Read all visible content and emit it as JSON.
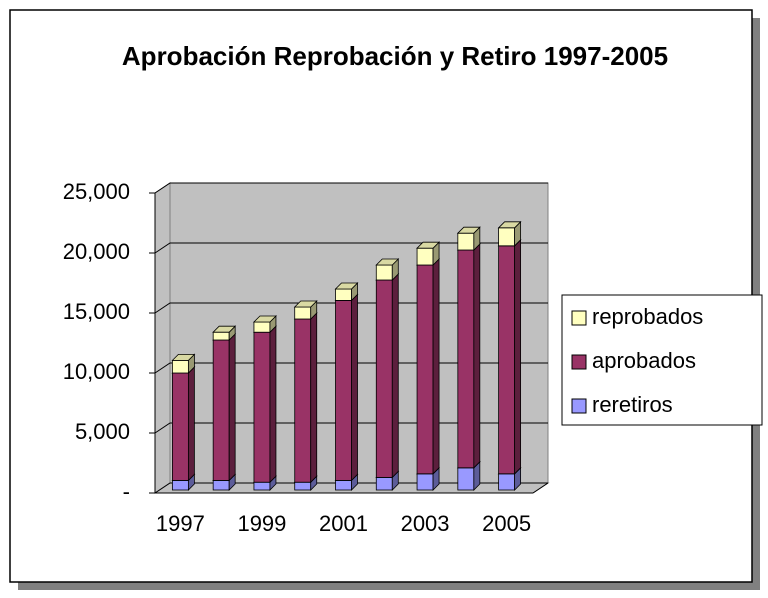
{
  "chart_data": {
    "type": "bar3d_stacked",
    "title": "Aprobación Reprobación y Retiro 1997-2005",
    "categories": [
      "1997",
      null,
      "1999",
      null,
      "2001",
      null,
      "2003",
      null,
      "2005"
    ],
    "series": [
      {
        "name": "reretiros",
        "color": "#9999ff",
        "values": [
          800,
          800,
          650,
          650,
          800,
          1050,
          1350,
          1850,
          1350
        ]
      },
      {
        "name": "aprobados",
        "color": "#993366",
        "values": [
          8950,
          11700,
          12500,
          13600,
          15000,
          16450,
          17400,
          18150,
          19000
        ]
      },
      {
        "name": "reprobados",
        "color": "#ffffc0",
        "values": [
          1050,
          650,
          850,
          1000,
          950,
          1250,
          1400,
          1400,
          1500
        ]
      }
    ],
    "ylim": [
      0,
      25000
    ],
    "yticks": [
      {
        "value": 0,
        "label": "-"
      },
      {
        "value": 5000,
        "label": "5,000"
      },
      {
        "value": 10000,
        "label": "10,000"
      },
      {
        "value": 15000,
        "label": "15,000"
      },
      {
        "value": 20000,
        "label": "20,000"
      },
      {
        "value": 25000,
        "label": "25,000"
      }
    ],
    "grid": true,
    "legend": "right"
  }
}
